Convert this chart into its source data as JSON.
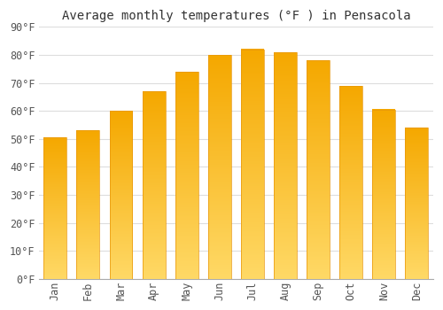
{
  "title": "Average monthly temperatures (°F ) in Pensacola",
  "months": [
    "Jan",
    "Feb",
    "Mar",
    "Apr",
    "May",
    "Jun",
    "Jul",
    "Aug",
    "Sep",
    "Oct",
    "Nov",
    "Dec"
  ],
  "values": [
    50.5,
    53.0,
    60.0,
    67.0,
    74.0,
    80.0,
    82.0,
    81.0,
    78.0,
    69.0,
    60.5,
    54.0
  ],
  "bar_color_top": "#F5A800",
  "bar_color_bottom": "#FFD966",
  "ylim": [
    0,
    90
  ],
  "yticks": [
    0,
    10,
    20,
    30,
    40,
    50,
    60,
    70,
    80,
    90
  ],
  "background_color": "#ffffff",
  "grid_color": "#dddddd",
  "title_fontsize": 10,
  "tick_fontsize": 8.5,
  "bar_width": 0.7
}
